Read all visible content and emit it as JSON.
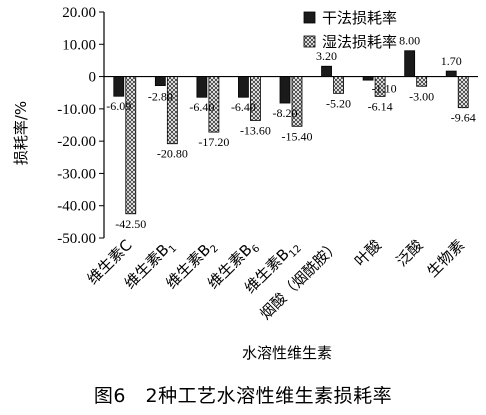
{
  "figure_caption": "图6　2种工艺水溶性维生素损耗率",
  "chart_data": {
    "type": "bar",
    "categories": [
      "维生素C",
      "维生素B1",
      "维生素B2",
      "维生素B6",
      "维生素B12",
      "烟酸（烟酰胺）",
      "叶酸",
      "泛酸",
      "生物素"
    ],
    "category_labels": [
      {
        "base": "维生素C",
        "sub": ""
      },
      {
        "base": "维生素B",
        "sub": "1"
      },
      {
        "base": "维生素B",
        "sub": "2"
      },
      {
        "base": "维生素B",
        "sub": "6"
      },
      {
        "base": "维生素B",
        "sub": "12"
      },
      {
        "base": "烟酸（烟酰胺）",
        "sub": ""
      },
      {
        "base": "叶酸",
        "sub": ""
      },
      {
        "base": "泛酸",
        "sub": ""
      },
      {
        "base": "生物素",
        "sub": ""
      }
    ],
    "series": [
      {
        "name": "干法损耗率",
        "values": [
          -6.09,
          -2.8,
          -6.4,
          -6.4,
          -8.2,
          3.2,
          -1.1,
          8.0,
          1.7
        ],
        "color": "#1a1a1a",
        "pattern": "solid"
      },
      {
        "name": "湿法损耗率",
        "values": [
          -42.5,
          -20.8,
          -17.2,
          -13.6,
          -15.4,
          -5.2,
          -6.14,
          -3.0,
          -9.64
        ],
        "color": "#ffffff",
        "pattern": "crosshatch"
      }
    ],
    "data_labels": [
      [
        "-6.09",
        "-2.80",
        "-6.40",
        "-6.40",
        "-8.20",
        "3.20",
        "-1.10",
        "8.00",
        "1.70"
      ],
      [
        "-42.50",
        "-20.80",
        "-17.20",
        "-13.60",
        "-15.40",
        "-5.20",
        "-6.14",
        "-3.00",
        "-9.64"
      ]
    ],
    "xlabel": "水溶性维生素",
    "ylabel": "损耗率/%",
    "ylim": [
      -50,
      20
    ],
    "yticks": [
      20,
      10,
      0,
      -10,
      -20,
      -30,
      -40,
      -50
    ],
    "ytick_labels": [
      "20.00",
      "10.00",
      "0",
      "-10.00",
      "-20.00",
      "-30.00",
      "-40.00",
      "-50.00"
    ],
    "legend_position": "top-right",
    "grid": false
  }
}
